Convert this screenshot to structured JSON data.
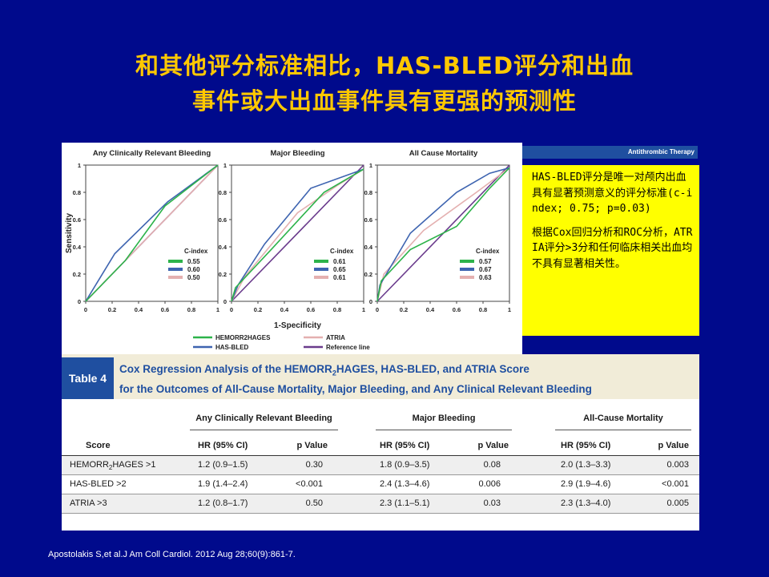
{
  "slide": {
    "title_line1": "和其他评分标准相比，HAS-BLED评分和出血",
    "title_line2": "事件或大出血事件具有更强的预测性",
    "citation": "Apostolakis S,et al.J Am Coll Cardiol. 2012 Aug 28;60(9):861-7.",
    "header_strip": "Antithrombic Therapy",
    "note_p1": "HAS-BLED评分是唯一对颅内出血具有显著预测意义的评分标准(c-index; 0.75; p=0.03)",
    "note_p2": "根据Cox回归分析和ROC分析，ATRIA评分>3分和任何临床相关出血均不具有显著相关性。",
    "colors": {
      "background": "#000a8c",
      "title": "#ffc800",
      "note_bg": "#ffff00",
      "table_label_bg": "#1f4fa0",
      "table_head_bg": "#f1ecd8"
    }
  },
  "chart_data": [
    {
      "type": "line",
      "title": "Any Clinically Relevant Bleeding",
      "xlabel": "",
      "ylabel": "Sensitivity",
      "xlim": [
        0,
        1
      ],
      "ylim": [
        0,
        1
      ],
      "x_ticks": [
        "0",
        "0.2",
        "0.4",
        "0.6",
        "0.8",
        "1"
      ],
      "y_ticks": [
        "0",
        "0.2",
        "0.4",
        "0.6",
        "0.8",
        "1"
      ],
      "legend_title": "C-index",
      "series": [
        {
          "name": "HEMORR2HAGES",
          "cindex": "0.55",
          "color": "#2db34a",
          "points": [
            [
              0,
              0
            ],
            [
              0.3,
              0.3
            ],
            [
              0.6,
              0.7
            ],
            [
              1,
              1
            ]
          ]
        },
        {
          "name": "HAS-BLED",
          "cindex": "0.60",
          "color": "#3e64b0",
          "points": [
            [
              0,
              0
            ],
            [
              0.22,
              0.35
            ],
            [
              0.62,
              0.73
            ],
            [
              1,
              1
            ]
          ]
        },
        {
          "name": "ATRIA",
          "cindex": "0.50",
          "color": "#e4b0b0",
          "points": [
            [
              0,
              0
            ],
            [
              0.5,
              0.5
            ],
            [
              1,
              1
            ]
          ]
        },
        {
          "name": "Reference line",
          "color": "#6a3b8c",
          "points": [
            [
              0,
              0
            ],
            [
              1,
              1
            ]
          ]
        }
      ]
    },
    {
      "type": "line",
      "title": "Major Bleeding",
      "xlabel": "1-Specificity",
      "ylabel": "",
      "xlim": [
        0,
        1
      ],
      "ylim": [
        0,
        1
      ],
      "x_ticks": [
        "0",
        "0.2",
        "0.4",
        "0.6",
        "0.8",
        "1"
      ],
      "y_ticks": [
        "0",
        "0.2",
        "0.4",
        "0.6",
        "0.8",
        "1"
      ],
      "legend_title": "C-index",
      "series": [
        {
          "name": "HEMORR2HAGES",
          "cindex": "0.61",
          "color": "#2db34a",
          "points": [
            [
              0,
              0
            ],
            [
              0.03,
              0.1
            ],
            [
              0.3,
              0.38
            ],
            [
              0.7,
              0.8
            ],
            [
              1,
              0.97
            ]
          ]
        },
        {
          "name": "HAS-BLED",
          "cindex": "0.65",
          "color": "#3e64b0",
          "points": [
            [
              0,
              0
            ],
            [
              0.05,
              0.12
            ],
            [
              0.25,
              0.42
            ],
            [
              0.6,
              0.83
            ],
            [
              1,
              0.97
            ]
          ]
        },
        {
          "name": "ATRIA",
          "cindex": "0.61",
          "color": "#e4b0b0",
          "points": [
            [
              0,
              0
            ],
            [
              0.1,
              0.18
            ],
            [
              0.5,
              0.65
            ],
            [
              0.8,
              0.85
            ],
            [
              1,
              0.97
            ]
          ]
        },
        {
          "name": "Reference line",
          "color": "#6a3b8c",
          "points": [
            [
              0,
              0
            ],
            [
              1,
              1
            ]
          ]
        }
      ]
    },
    {
      "type": "line",
      "title": "All Cause Mortality",
      "xlabel": "",
      "ylabel": "",
      "xlim": [
        0,
        1
      ],
      "ylim": [
        0,
        1
      ],
      "x_ticks": [
        "0",
        "0.2",
        "0.4",
        "0.6",
        "0.8",
        "1"
      ],
      "y_ticks": [
        "0",
        "0.2",
        "0.4",
        "0.6",
        "0.8",
        "1"
      ],
      "legend_title": "C-index",
      "series": [
        {
          "name": "HEMORR2HAGES",
          "cindex": "0.57",
          "color": "#2db34a",
          "points": [
            [
              0,
              0
            ],
            [
              0.03,
              0.15
            ],
            [
              0.25,
              0.38
            ],
            [
              0.6,
              0.55
            ],
            [
              0.85,
              0.83
            ],
            [
              1,
              0.98
            ]
          ]
        },
        {
          "name": "HAS-BLED",
          "cindex": "0.67",
          "color": "#3e64b0",
          "points": [
            [
              0,
              0
            ],
            [
              0.02,
              0.12
            ],
            [
              0.25,
              0.5
            ],
            [
              0.6,
              0.8
            ],
            [
              0.85,
              0.94
            ],
            [
              1,
              0.98
            ]
          ]
        },
        {
          "name": "ATRIA",
          "cindex": "0.63",
          "color": "#e4b0b0",
          "points": [
            [
              0,
              0
            ],
            [
              0.05,
              0.2
            ],
            [
              0.35,
              0.52
            ],
            [
              0.75,
              0.8
            ],
            [
              1,
              0.98
            ]
          ]
        },
        {
          "name": "Reference line",
          "color": "#6a3b8c",
          "points": [
            [
              0,
              0
            ],
            [
              1,
              1
            ]
          ]
        }
      ]
    }
  ],
  "legend": {
    "items": [
      {
        "label": "HEMORR2HAGES",
        "color": "#2db34a"
      },
      {
        "label": "HAS-BLED",
        "color": "#3e64b0"
      },
      {
        "label": "ATRIA",
        "color": "#e4b0b0"
      },
      {
        "label": "Reference line",
        "color": "#6a3b8c"
      }
    ]
  },
  "table": {
    "label": "Table 4",
    "caption_line1a": "Cox Regression Analysis of the HEMORR",
    "caption_line1_sub": "2",
    "caption_line1b": "HAGES, HAS-BLED, and ATRIA Score",
    "caption_line2": "for the Outcomes of All-Cause Mortality, Major Bleeding, and Any Clinical Relevant Bleeding",
    "groups": [
      "Any Clinically Relevant Bleeding",
      "Major Bleeding",
      "All-Cause Mortality"
    ],
    "score_header": "Score",
    "hr_header": "HR (95% CI)",
    "p_header": "p Value",
    "rows": [
      {
        "score_a": "HEMORR",
        "score_sub": "2",
        "score_b": "HAGES >1",
        "c1": "1.2 (0.9–1.5)",
        "p1": "0.30",
        "c2": "1.8 (0.9–3.5)",
        "p2": "0.08",
        "c3": "2.0 (1.3–3.3)",
        "p3": "0.003"
      },
      {
        "score_a": "HAS-BLED >2",
        "score_sub": "",
        "score_b": "",
        "c1": "1.9 (1.4–2.4)",
        "p1": "<0.001",
        "c2": "2.4 (1.3–4.6)",
        "p2": "0.006",
        "c3": "2.9 (1.9–4.6)",
        "p3": "<0.001"
      },
      {
        "score_a": "ATRIA >3",
        "score_sub": "",
        "score_b": "",
        "c1": "1.2 (0.8–1.7)",
        "p1": "0.50",
        "c2": "2.3 (1.1–5.1)",
        "p2": "0.03",
        "c3": "2.3 (1.3–4.0)",
        "p3": "0.005"
      }
    ]
  }
}
